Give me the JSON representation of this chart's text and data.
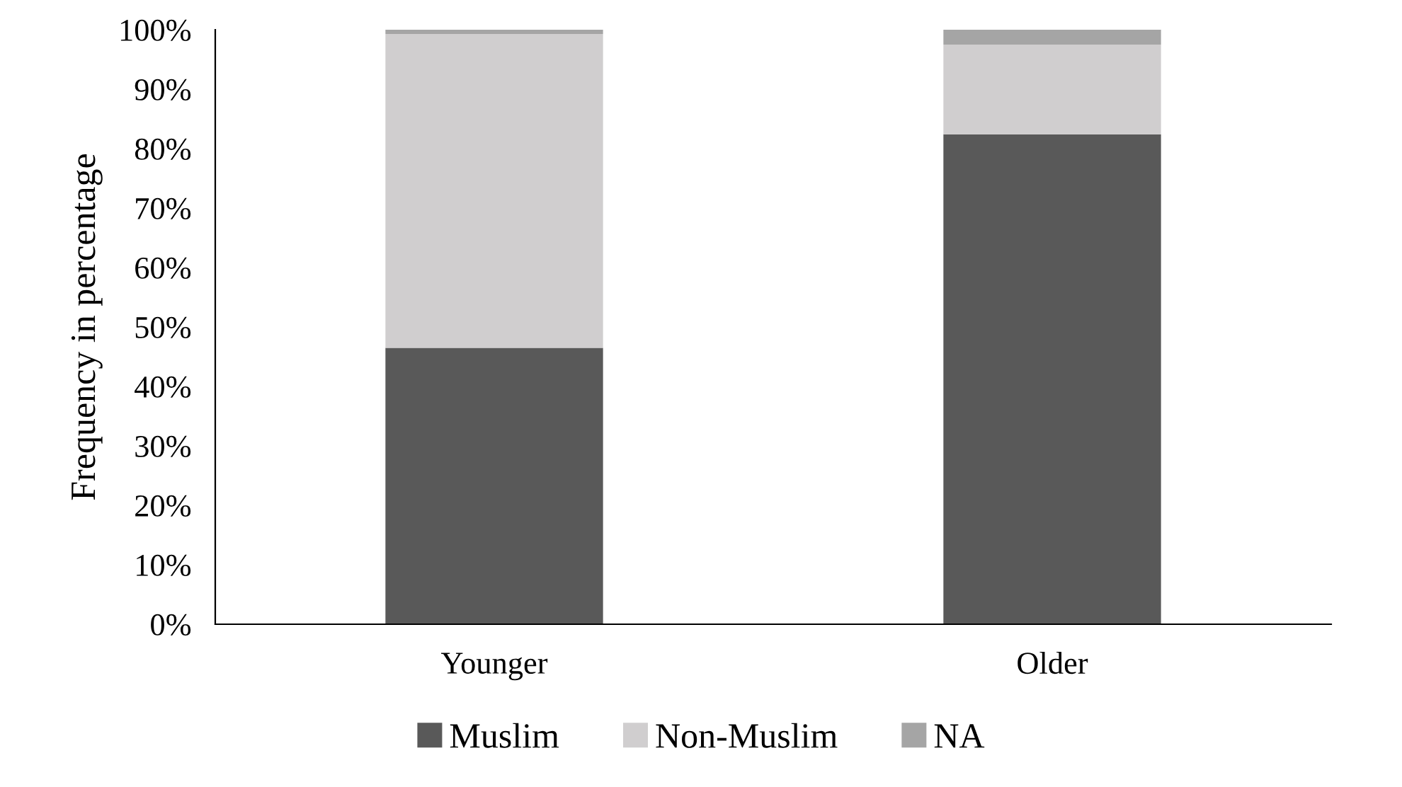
{
  "chart_data": {
    "type": "bar",
    "stacked": true,
    "ylabel": "Frequency in percentage",
    "categories": [
      "Younger",
      "Older"
    ],
    "series": [
      {
        "name": "Muslim",
        "color": "#595959",
        "values": [
          46.5,
          82.4
        ]
      },
      {
        "name": "Non-Muslim",
        "color": "#d0cecf",
        "values": [
          52.8,
          15.1
        ]
      },
      {
        "name": "NA",
        "color": "#a5a5a5",
        "values": [
          0.7,
          2.5
        ]
      }
    ],
    "ylim": [
      0,
      100
    ],
    "yticks": [
      {
        "value": 0,
        "label": "0%"
      },
      {
        "value": 10,
        "label": "10%"
      },
      {
        "value": 20,
        "label": "20%"
      },
      {
        "value": 30,
        "label": "30%"
      },
      {
        "value": 40,
        "label": "40%"
      },
      {
        "value": 50,
        "label": "50%"
      },
      {
        "value": 60,
        "label": "60%"
      },
      {
        "value": 70,
        "label": "70%"
      },
      {
        "value": 80,
        "label": "80%"
      },
      {
        "value": 90,
        "label": "90%"
      },
      {
        "value": 100,
        "label": "100%"
      }
    ],
    "grid": false,
    "legend": "bottom"
  }
}
